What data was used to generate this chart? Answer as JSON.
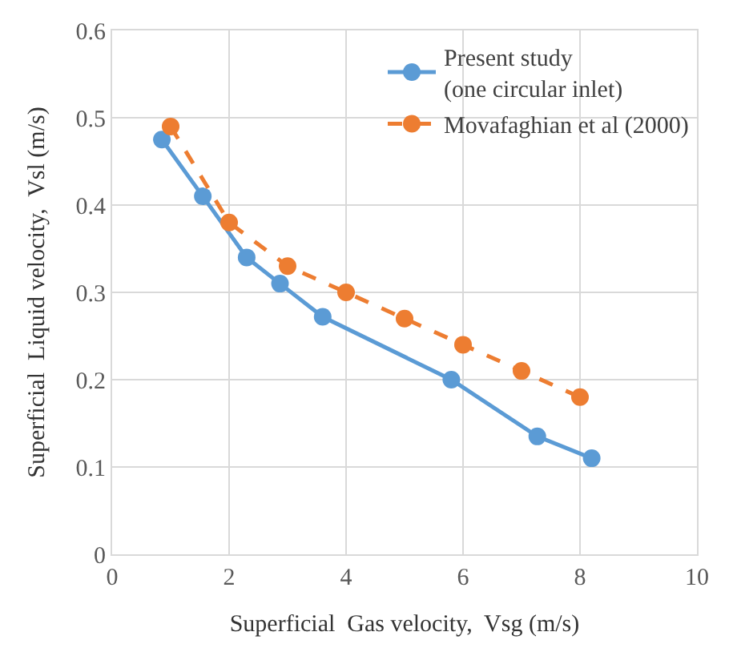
{
  "chart_data": {
    "type": "line",
    "xlabel": "Superficial  Gas velocity,  Vsg (m/s)",
    "ylabel": "Superficial  Liquid velocity,  Vsl (m/s)",
    "xlim": [
      0,
      10
    ],
    "xticks": [
      0,
      2,
      4,
      6,
      8,
      10
    ],
    "ylim": [
      0,
      0.6
    ],
    "yticks": [
      0,
      0.1,
      0.2,
      0.3,
      0.4,
      0.5,
      0.6
    ],
    "grid": true,
    "legend": "top right",
    "marker": "circle",
    "series": [
      {
        "name": "Present study\n(one circular inlet)",
        "color": "#5b9bd5",
        "line_style": "solid",
        "x": [
          0.85,
          1.55,
          2.3,
          2.87,
          3.6,
          5.8,
          7.27,
          8.2
        ],
        "values": [
          0.475,
          0.41,
          0.34,
          0.31,
          0.272,
          0.2,
          0.135,
          0.11
        ]
      },
      {
        "name": "Movafaghian et al (2000)",
        "color": "#ed7d31",
        "line_style": "dashed",
        "x": [
          1,
          2,
          3,
          4,
          5,
          6,
          7,
          8
        ],
        "values": [
          0.49,
          0.38,
          0.33,
          0.3,
          0.27,
          0.24,
          0.21,
          0.18
        ]
      }
    ]
  }
}
